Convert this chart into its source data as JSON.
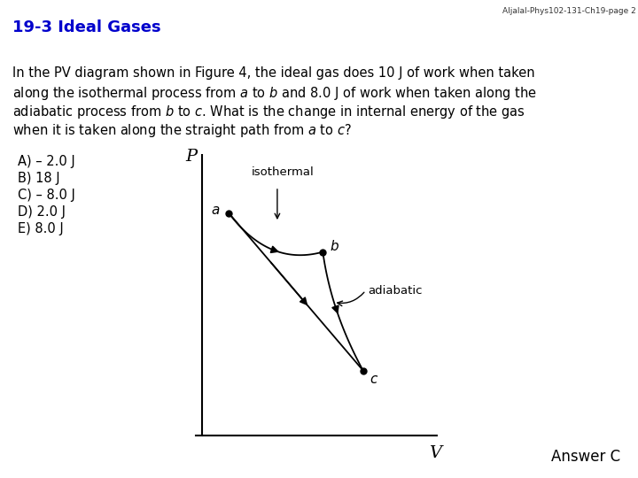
{
  "title": "19-3 Ideal Gases",
  "header_right": "Aljalal-Phys102-131-Ch19-page 2",
  "choices": [
    "A) – 2.0 J",
    "B) 18 J",
    "C) – 8.0 J",
    "D) 2.0 J",
    "E) 8.0 J"
  ],
  "answer": "Answer C",
  "bg_color": "#ffffff",
  "text_color": "#000000",
  "title_color": "#0000cc",
  "pa": [
    2.0,
    7.8
  ],
  "pb": [
    5.5,
    6.5
  ],
  "pc": [
    7.0,
    2.5
  ],
  "ctrl_iso": [
    3.5,
    6.0
  ],
  "ctrl_adi": [
    5.8,
    4.5
  ],
  "diag_xlim": [
    0,
    10
  ],
  "diag_ylim": [
    0,
    10
  ]
}
